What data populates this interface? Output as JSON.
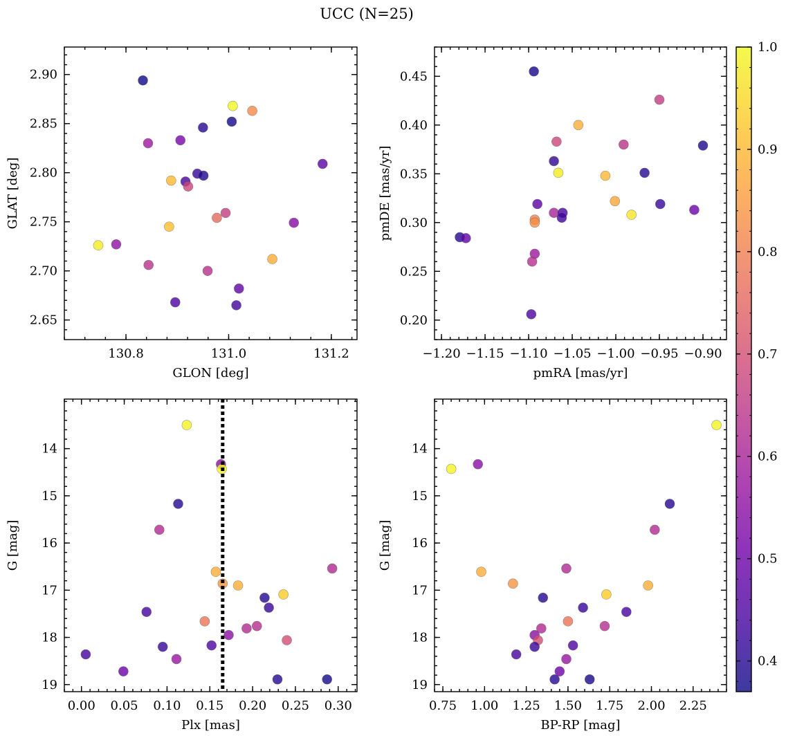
{
  "figure": {
    "title": "UCC (N=25)"
  },
  "colorbar": {
    "min": 0.37,
    "max": 1.0,
    "ticks": [
      0.4,
      0.5,
      0.6,
      0.7,
      0.8,
      0.9,
      1.0
    ],
    "tick_labels": [
      "0.4",
      "0.5",
      "0.6",
      "0.7",
      "0.8",
      "0.9",
      "1.0"
    ],
    "colormap": "plasma",
    "colormap_stops": [
      "#0d0887",
      "#46039f",
      "#7201a8",
      "#9c179e",
      "#bd3786",
      "#d8576b",
      "#ed7953",
      "#fb9f3a",
      "#fdca26",
      "#f0f921"
    ],
    "point_alpha": 0.8
  },
  "reference_line": {
    "panel": 2,
    "value": 0.165,
    "style": "dotted",
    "color": "#000000"
  },
  "chart_data": [
    {
      "type": "scatter",
      "xlabel": "GLON [deg]",
      "ylabel": "GLAT [deg]",
      "xlim": [
        130.68,
        131.25
      ],
      "ylim": [
        2.63,
        2.928
      ],
      "xticks": [
        130.8,
        131.0,
        131.2
      ],
      "xtick_labels": [
        "130.8",
        "131.0",
        "131.2"
      ],
      "yticks": [
        2.65,
        2.7,
        2.75,
        2.8,
        2.85,
        2.9
      ],
      "ytick_labels": [
        "2.65",
        "2.70",
        "2.75",
        "2.80",
        "2.85",
        "2.90"
      ],
      "y_inverted": false,
      "points": [
        {
          "x": 130.833,
          "y": 2.894,
          "c": 0.37
        },
        {
          "x": 131.008,
          "y": 2.868,
          "c": 1.0
        },
        {
          "x": 131.046,
          "y": 2.863,
          "c": 0.82
        },
        {
          "x": 131.006,
          "y": 2.852,
          "c": 0.38
        },
        {
          "x": 130.95,
          "y": 2.846,
          "c": 0.4
        },
        {
          "x": 130.906,
          "y": 2.833,
          "c": 0.52
        },
        {
          "x": 130.843,
          "y": 2.83,
          "c": 0.58
        },
        {
          "x": 131.183,
          "y": 2.809,
          "c": 0.47
        },
        {
          "x": 130.939,
          "y": 2.799,
          "c": 0.42
        },
        {
          "x": 130.951,
          "y": 2.797,
          "c": 0.39
        },
        {
          "x": 130.888,
          "y": 2.792,
          "c": 0.9
        },
        {
          "x": 130.916,
          "y": 2.791,
          "c": 0.44
        },
        {
          "x": 130.921,
          "y": 2.786,
          "c": 0.68
        },
        {
          "x": 130.994,
          "y": 2.759,
          "c": 0.66
        },
        {
          "x": 130.977,
          "y": 2.754,
          "c": 0.76
        },
        {
          "x": 131.127,
          "y": 2.749,
          "c": 0.54
        },
        {
          "x": 130.884,
          "y": 2.745,
          "c": 0.91
        },
        {
          "x": 130.746,
          "y": 2.726,
          "c": 0.98
        },
        {
          "x": 130.781,
          "y": 2.727,
          "c": 0.56
        },
        {
          "x": 131.085,
          "y": 2.712,
          "c": 0.88
        },
        {
          "x": 130.844,
          "y": 2.706,
          "c": 0.64
        },
        {
          "x": 130.959,
          "y": 2.7,
          "c": 0.63
        },
        {
          "x": 131.02,
          "y": 2.682,
          "c": 0.48
        },
        {
          "x": 130.896,
          "y": 2.668,
          "c": 0.45
        },
        {
          "x": 131.015,
          "y": 2.665,
          "c": 0.43
        }
      ]
    },
    {
      "type": "scatter",
      "xlabel": "pmRA [mas/yr]",
      "ylabel": "pmDE [mas/yr]",
      "xlim": [
        -1.208,
        -0.873
      ],
      "ylim": [
        0.18,
        0.48
      ],
      "xticks": [
        -1.2,
        -1.15,
        -1.1,
        -1.05,
        -1.0,
        -0.95,
        -0.9
      ],
      "xtick_labels": [
        "−1.20",
        "−1.15",
        "−1.10",
        "−1.05",
        "−1.00",
        "−0.95",
        "−0.90"
      ],
      "yticks": [
        0.2,
        0.25,
        0.3,
        0.35,
        0.4,
        0.45
      ],
      "ytick_labels": [
        "0.20",
        "0.25",
        "0.30",
        "0.35",
        "0.40",
        "0.45"
      ],
      "y_inverted": false,
      "points": [
        {
          "x": -1.094,
          "y": 0.455,
          "c": 0.38
        },
        {
          "x": -0.95,
          "y": 0.426,
          "c": 0.66
        },
        {
          "x": -1.043,
          "y": 0.4,
          "c": 0.88
        },
        {
          "x": -1.068,
          "y": 0.383,
          "c": 0.68
        },
        {
          "x": -0.991,
          "y": 0.38,
          "c": 0.64
        },
        {
          "x": -0.9,
          "y": 0.379,
          "c": 0.39
        },
        {
          "x": -1.071,
          "y": 0.363,
          "c": 0.41
        },
        {
          "x": -1.066,
          "y": 0.351,
          "c": 0.98
        },
        {
          "x": -0.967,
          "y": 0.351,
          "c": 0.4
        },
        {
          "x": -1.012,
          "y": 0.348,
          "c": 0.9
        },
        {
          "x": -1.001,
          "y": 0.322,
          "c": 0.87
        },
        {
          "x": -1.09,
          "y": 0.319,
          "c": 0.47
        },
        {
          "x": -0.949,
          "y": 0.319,
          "c": 0.42
        },
        {
          "x": -0.91,
          "y": 0.313,
          "c": 0.5
        },
        {
          "x": -1.071,
          "y": 0.31,
          "c": 0.6
        },
        {
          "x": -1.061,
          "y": 0.31,
          "c": 0.44
        },
        {
          "x": -0.982,
          "y": 0.308,
          "c": 0.97
        },
        {
          "x": -1.062,
          "y": 0.305,
          "c": 0.43
        },
        {
          "x": -1.093,
          "y": 0.303,
          "c": 0.8
        },
        {
          "x": -1.093,
          "y": 0.3,
          "c": 0.83
        },
        {
          "x": -1.179,
          "y": 0.285,
          "c": 0.4
        },
        {
          "x": -1.172,
          "y": 0.284,
          "c": 0.48
        },
        {
          "x": -1.093,
          "y": 0.268,
          "c": 0.58
        },
        {
          "x": -1.096,
          "y": 0.26,
          "c": 0.63
        },
        {
          "x": -1.097,
          "y": 0.206,
          "c": 0.45
        }
      ]
    },
    {
      "type": "scatter",
      "xlabel": "Plx [mas]",
      "ylabel": "G [mag]",
      "xlim": [
        -0.02,
        0.322
      ],
      "ylim": [
        19.15,
        12.95
      ],
      "xticks": [
        0.0,
        0.05,
        0.1,
        0.15,
        0.2,
        0.25,
        0.3
      ],
      "xtick_labels": [
        "0.00",
        "0.05",
        "0.10",
        "0.15",
        "0.20",
        "0.25",
        "0.30"
      ],
      "yticks": [
        14,
        15,
        16,
        17,
        18,
        19
      ],
      "ytick_labels": [
        "14",
        "15",
        "16",
        "17",
        "18",
        "19"
      ],
      "y_inverted": true,
      "points": [
        {
          "x": 0.123,
          "y": 13.5,
          "c": 0.99
        },
        {
          "x": 0.163,
          "y": 14.33,
          "c": 0.55
        },
        {
          "x": 0.164,
          "y": 14.43,
          "c": 0.99
        },
        {
          "x": 0.113,
          "y": 15.17,
          "c": 0.4
        },
        {
          "x": 0.091,
          "y": 15.72,
          "c": 0.62
        },
        {
          "x": 0.293,
          "y": 16.54,
          "c": 0.62
        },
        {
          "x": 0.157,
          "y": 16.61,
          "c": 0.88
        },
        {
          "x": 0.165,
          "y": 16.86,
          "c": 0.84
        },
        {
          "x": 0.183,
          "y": 16.9,
          "c": 0.88
        },
        {
          "x": 0.236,
          "y": 17.09,
          "c": 0.93
        },
        {
          "x": 0.214,
          "y": 17.16,
          "c": 0.4
        },
        {
          "x": 0.219,
          "y": 17.37,
          "c": 0.42
        },
        {
          "x": 0.076,
          "y": 17.46,
          "c": 0.44
        },
        {
          "x": 0.144,
          "y": 17.66,
          "c": 0.78
        },
        {
          "x": 0.205,
          "y": 17.76,
          "c": 0.63
        },
        {
          "x": 0.193,
          "y": 17.81,
          "c": 0.62
        },
        {
          "x": 0.172,
          "y": 17.95,
          "c": 0.55
        },
        {
          "x": 0.24,
          "y": 18.06,
          "c": 0.7
        },
        {
          "x": 0.152,
          "y": 18.17,
          "c": 0.45
        },
        {
          "x": 0.095,
          "y": 18.2,
          "c": 0.42
        },
        {
          "x": 0.005,
          "y": 18.36,
          "c": 0.44
        },
        {
          "x": 0.111,
          "y": 18.46,
          "c": 0.57
        },
        {
          "x": 0.049,
          "y": 18.72,
          "c": 0.5
        },
        {
          "x": 0.229,
          "y": 18.89,
          "c": 0.4
        },
        {
          "x": 0.287,
          "y": 18.89,
          "c": 0.38
        }
      ]
    },
    {
      "type": "scatter",
      "xlabel": "BP-RP [mag]",
      "ylabel": "G [mag]",
      "xlim": [
        0.7,
        2.45
      ],
      "ylim": [
        19.15,
        12.95
      ],
      "xticks": [
        0.75,
        1.0,
        1.25,
        1.5,
        1.75,
        2.0,
        2.25
      ],
      "xtick_labels": [
        "0.75",
        "1.00",
        "1.25",
        "1.50",
        "1.75",
        "2.00",
        "2.25"
      ],
      "yticks": [
        14,
        15,
        16,
        17,
        18,
        19
      ],
      "ytick_labels": [
        "14",
        "15",
        "16",
        "17",
        "18",
        "19"
      ],
      "y_inverted": true,
      "points": [
        {
          "x": 2.39,
          "y": 13.5,
          "c": 0.99
        },
        {
          "x": 0.8,
          "y": 14.43,
          "c": 0.99
        },
        {
          "x": 0.96,
          "y": 14.33,
          "c": 0.55
        },
        {
          "x": 2.11,
          "y": 15.17,
          "c": 0.4
        },
        {
          "x": 2.02,
          "y": 15.72,
          "c": 0.62
        },
        {
          "x": 1.49,
          "y": 16.54,
          "c": 0.62
        },
        {
          "x": 0.98,
          "y": 16.61,
          "c": 0.88
        },
        {
          "x": 1.17,
          "y": 16.86,
          "c": 0.84
        },
        {
          "x": 1.98,
          "y": 16.9,
          "c": 0.88
        },
        {
          "x": 1.73,
          "y": 17.09,
          "c": 0.93
        },
        {
          "x": 1.35,
          "y": 17.16,
          "c": 0.4
        },
        {
          "x": 1.59,
          "y": 17.37,
          "c": 0.42
        },
        {
          "x": 1.85,
          "y": 17.46,
          "c": 0.44
        },
        {
          "x": 1.5,
          "y": 17.66,
          "c": 0.78
        },
        {
          "x": 1.72,
          "y": 17.76,
          "c": 0.63
        },
        {
          "x": 1.34,
          "y": 17.81,
          "c": 0.62
        },
        {
          "x": 1.3,
          "y": 17.95,
          "c": 0.55
        },
        {
          "x": 1.32,
          "y": 18.06,
          "c": 0.7
        },
        {
          "x": 1.53,
          "y": 18.17,
          "c": 0.45
        },
        {
          "x": 1.3,
          "y": 18.2,
          "c": 0.42
        },
        {
          "x": 1.19,
          "y": 18.36,
          "c": 0.44
        },
        {
          "x": 1.49,
          "y": 18.46,
          "c": 0.57
        },
        {
          "x": 1.45,
          "y": 18.72,
          "c": 0.5
        },
        {
          "x": 1.42,
          "y": 18.89,
          "c": 0.4
        },
        {
          "x": 1.63,
          "y": 18.89,
          "c": 0.38
        }
      ]
    }
  ]
}
